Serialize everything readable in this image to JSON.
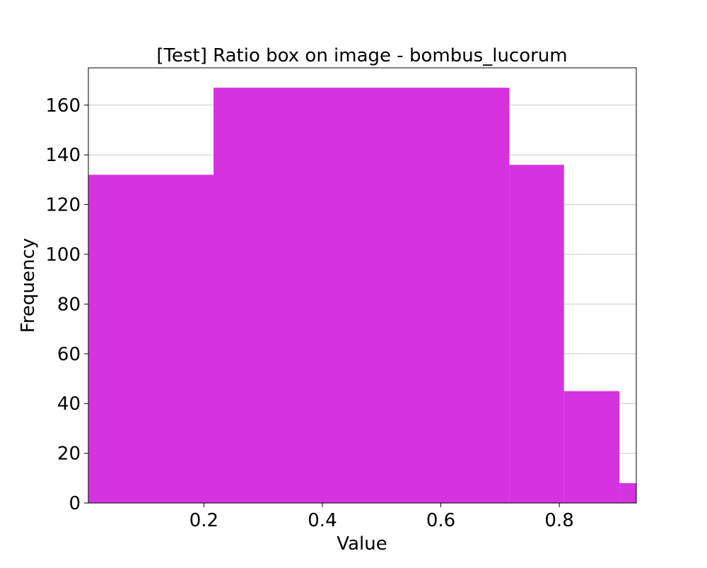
{
  "chart_data": {
    "type": "bar",
    "title": "[Test] Ratio box on image - bombus_lucorum",
    "xlabel": "Value",
    "ylabel": "Frequency",
    "xlim": [
      0.005,
      0.93
    ],
    "ylim": [
      0,
      175
    ],
    "xticks": [
      0.2,
      0.4,
      0.6,
      0.8
    ],
    "xtick_labels": [
      "0.2",
      "0.4",
      "0.6",
      "0.8"
    ],
    "yticks": [
      0,
      20,
      40,
      60,
      80,
      100,
      120,
      140,
      160
    ],
    "ytick_labels": [
      "0",
      "20",
      "40",
      "60",
      "80",
      "100",
      "120",
      "140",
      "160"
    ],
    "grid": "horizontal",
    "bar_color": "#d533e0",
    "bins": [
      {
        "x0": 0.005,
        "x1": 0.2163,
        "count": 132
      },
      {
        "x0": 0.2163,
        "x1": 0.7156,
        "count": 167
      },
      {
        "x0": 0.7156,
        "x1": 0.8079,
        "count": 136
      },
      {
        "x0": 0.8079,
        "x1": 0.9014,
        "count": 45
      },
      {
        "x0": 0.9014,
        "x1": 0.93,
        "count": 8
      }
    ]
  }
}
